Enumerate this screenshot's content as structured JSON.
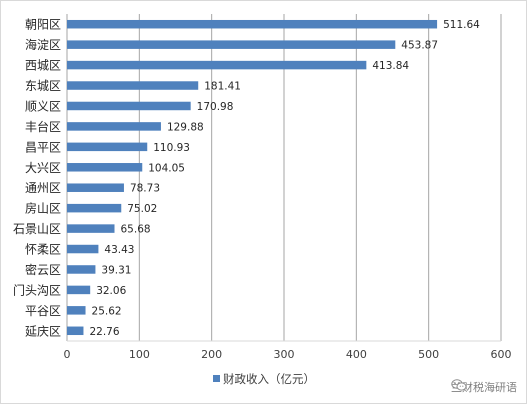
{
  "chart_data": {
    "type": "bar",
    "orientation": "horizontal",
    "categories": [
      "朝阳区",
      "海淀区",
      "西城区",
      "东城区",
      "顺义区",
      "丰台区",
      "昌平区",
      "大兴区",
      "通州区",
      "房山区",
      "石景山区",
      "怀柔区",
      "密云区",
      "门头沟区",
      "平谷区",
      "延庆区"
    ],
    "series": [
      {
        "name": "财政收入（亿元）",
        "values": [
          511.64,
          453.87,
          413.84,
          181.41,
          170.98,
          129.88,
          110.93,
          104.05,
          78.73,
          75.02,
          65.68,
          43.43,
          39.31,
          32.06,
          25.62,
          22.76
        ],
        "color": "#4f81bd"
      }
    ],
    "value_labels": [
      "511.64",
      "453.87",
      "413.84",
      "181.41",
      "170.98",
      "129.88",
      "110.93",
      "104.05",
      "78.73",
      "75.02",
      "65.68",
      "43.43",
      "39.31",
      "32.06",
      "25.62",
      "22.76"
    ],
    "xlim": [
      0,
      600
    ],
    "x_ticks": [
      "0",
      "100",
      "200",
      "300",
      "400",
      "500",
      "600"
    ],
    "grid": "vertical",
    "legend_position": "bottom"
  },
  "watermark": {
    "text": "兰财税海研语",
    "icon": "wechat-icon"
  }
}
